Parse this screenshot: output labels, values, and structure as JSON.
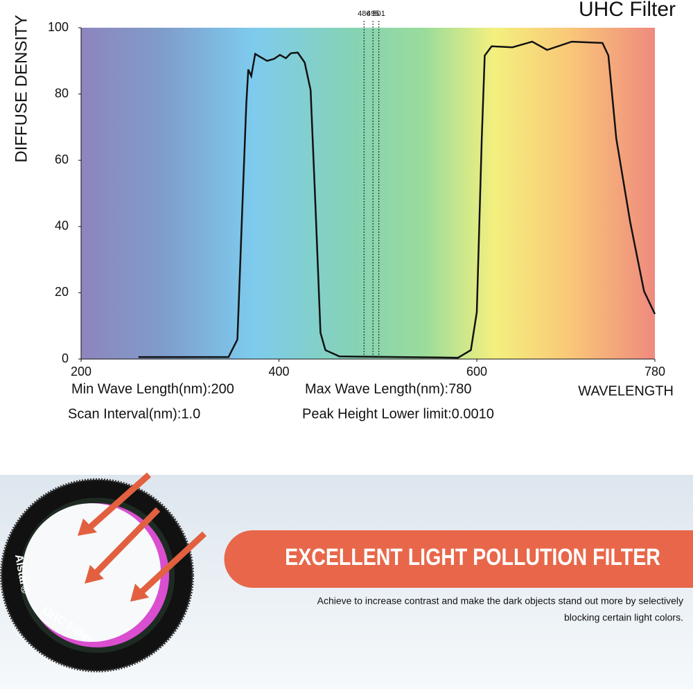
{
  "chart_data": {
    "type": "line",
    "title": "UHC Filter",
    "y_label": "DIFFUSE DENSITY",
    "x_label": "WAVELENGTH",
    "x": [
      258,
      349,
      358,
      363,
      367,
      369,
      372,
      376,
      381,
      388,
      395,
      401,
      407,
      412,
      419,
      426,
      432,
      437,
      442,
      447,
      461,
      581,
      594,
      600,
      605,
      608,
      615,
      636,
      656,
      671,
      696,
      727,
      733,
      741,
      755,
      769,
      780
    ],
    "series": [
      {
        "color": "#111111",
        "values": [
          0.6,
          0.6,
          5.9,
          45.8,
          77.0,
          87.4,
          85.4,
          92.1,
          91.2,
          90.0,
          90.6,
          91.8,
          90.8,
          92.3,
          92.5,
          89.5,
          81.2,
          45.6,
          7.9,
          2.7,
          0.8,
          0.4,
          2.7,
          14.2,
          66.5,
          91.6,
          94.4,
          94.1,
          95.8,
          93.3,
          95.8,
          95.4,
          91.6,
          66.5,
          41.4,
          20.5,
          13.6
        ]
      }
    ],
    "xlim": [
      200,
      780
    ],
    "xticks": [
      200,
      400,
      600,
      780
    ],
    "ylim": [
      0,
      100
    ],
    "yticks": [
      0,
      20,
      40,
      60,
      80,
      100
    ],
    "markers": [
      486,
      495,
      501
    ],
    "notes": [
      "Min Wave Length(nm):200",
      "Max Wave Length(nm):780",
      "Scan Interval(nm):1.0",
      "Peak Height Lower limit:0.0010"
    ]
  },
  "product": {
    "brand": "Alstar®",
    "label": "UHC Filter"
  },
  "banner": {
    "heading": "EXCELLENT LIGHT POLLUTION FILTER",
    "text": [
      "Achieve to increase contrast and make the dark objects stand out more by selectively",
      "blocking certain light colors."
    ]
  }
}
